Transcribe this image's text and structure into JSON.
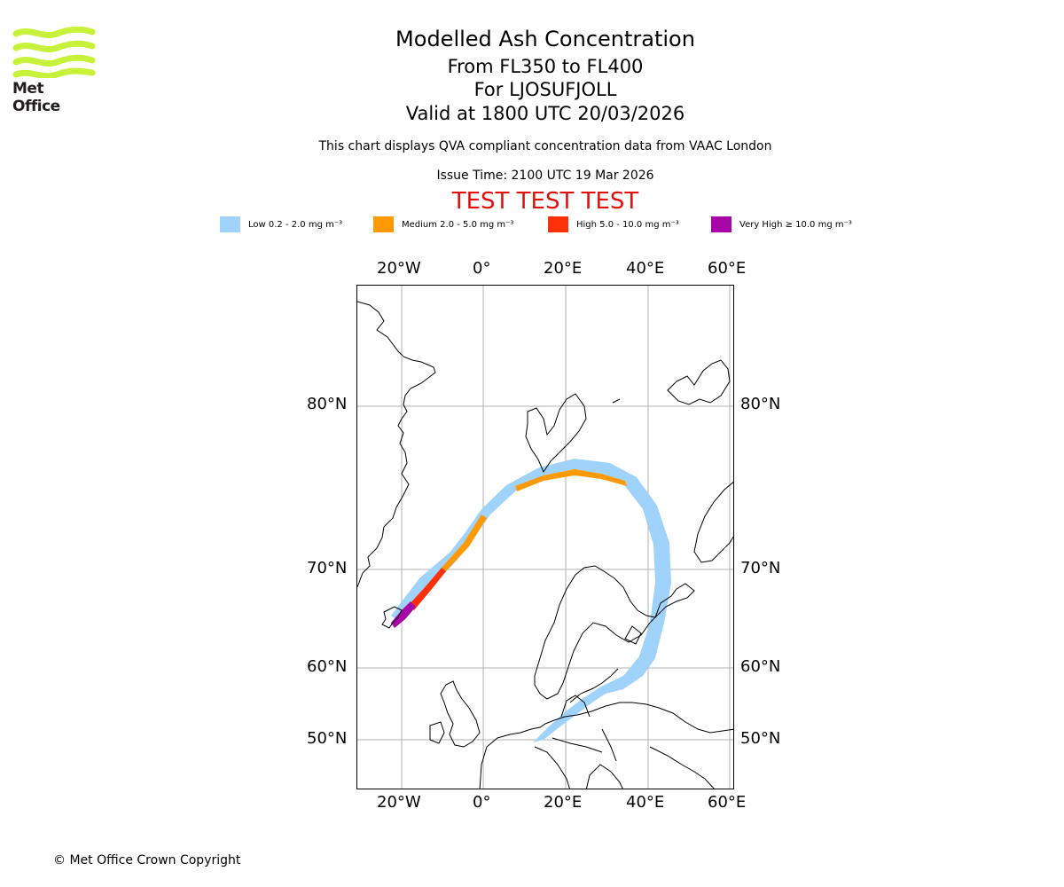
{
  "logo": {
    "name": "Met Office",
    "color": "#c8f23a"
  },
  "title": {
    "main": "Modelled Ash Concentration",
    "levels": "From FL350 to FL400",
    "volcano": "For LJOSUFJOLL",
    "valid": "Valid at 1800 UTC 20/03/2026",
    "description": "This chart displays QVA compliant concentration data from VAAC London",
    "issue_time": "Issue Time: 2100 UTC 19 Mar 2026",
    "test_banner": "TEST TEST TEST",
    "test_banner_color": "#e0100c"
  },
  "legend": [
    {
      "label": "Low 0.2 - 2.0 mg m⁻³",
      "color": "#9fd3fb"
    },
    {
      "label": "Medium 2.0 - 5.0 mg m⁻³",
      "color": "#ff9a05"
    },
    {
      "label": "High 5.0 - 10.0 mg m⁻³",
      "color": "#ff3008"
    },
    {
      "label": "Very High  ≥  10.0 mg m⁻³",
      "color": "#a805a8"
    }
  ],
  "map": {
    "lon_ticks": [
      "20°W",
      "0°",
      "20°E",
      "40°E",
      "60°E"
    ],
    "lat_ticks": [
      "80°N",
      "70°N",
      "60°N",
      "50°N"
    ],
    "gridline_color": "#b0b0b0",
    "coastline_color": "#000000"
  },
  "copyright": "© Met Office Crown Copyright"
}
